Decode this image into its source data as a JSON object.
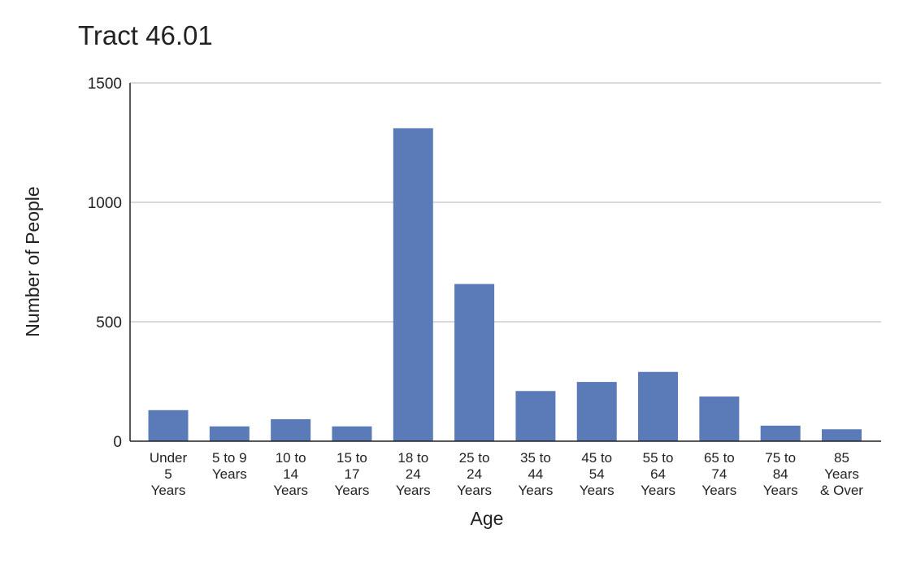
{
  "chart_data": {
    "type": "bar",
    "title": "Tract 46.01",
    "xlabel": "Age",
    "ylabel": "Number of People",
    "ylim": [
      0,
      1500
    ],
    "yticks": [
      0,
      500,
      1000,
      1500
    ],
    "grid": true,
    "categories": [
      "Under 5 Years",
      "5 to 9 Years",
      "10 to 14 Years",
      "15 to 17 Years",
      "18 to 24 Years",
      "25 to 24 Years",
      "35 to 44 Years",
      "45 to 54 Years",
      "55 to 64 Years",
      "65 to 74 Years",
      "75 to 84 Years",
      "85 Years & Over"
    ],
    "category_lines": [
      [
        "Under",
        "5",
        "Years"
      ],
      [
        "5 to 9",
        "Years"
      ],
      [
        "10 to",
        "14",
        "Years"
      ],
      [
        "15 to",
        "17",
        "Years"
      ],
      [
        "18 to",
        "24",
        "Years"
      ],
      [
        "25 to",
        "24",
        "Years"
      ],
      [
        "35 to",
        "44",
        "Years"
      ],
      [
        "45 to",
        "54",
        "Years"
      ],
      [
        "55 to",
        "64",
        "Years"
      ],
      [
        "65 to",
        "74",
        "Years"
      ],
      [
        "75 to",
        "84",
        "Years"
      ],
      [
        "85",
        "Years",
        "& Over"
      ]
    ],
    "values": [
      130,
      62,
      92,
      62,
      1310,
      658,
      210,
      248,
      290,
      187,
      65,
      50
    ],
    "bar_color": "#5a7ab8"
  }
}
